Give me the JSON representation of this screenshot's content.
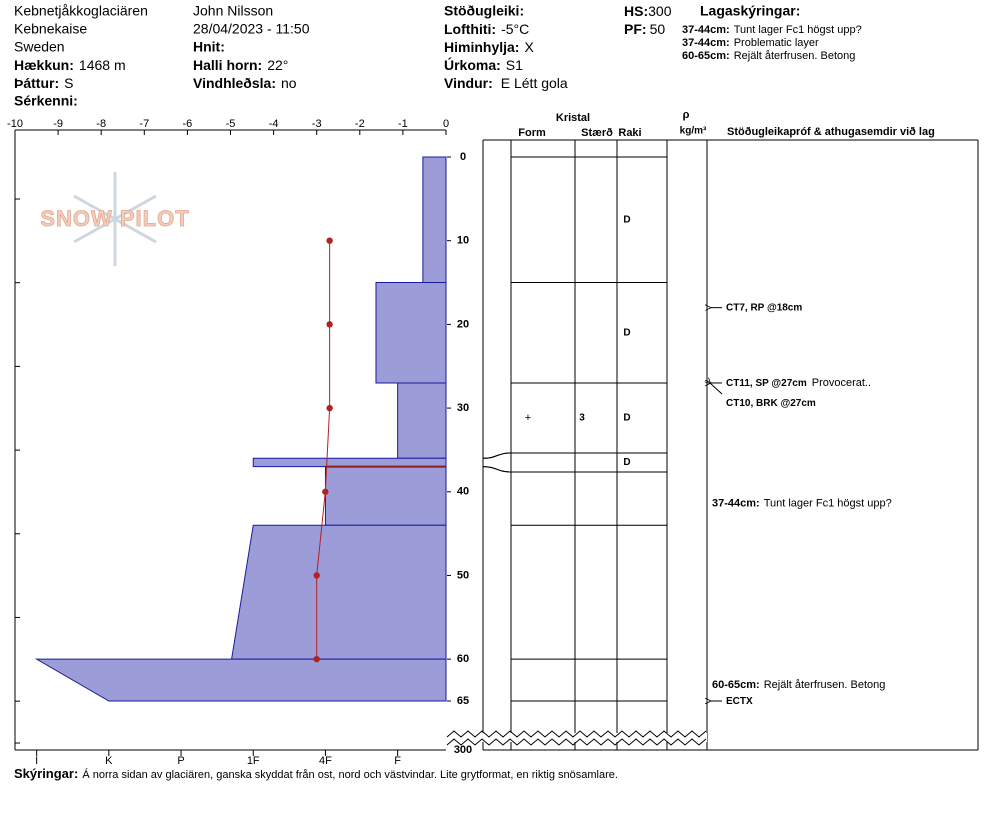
{
  "header": {
    "site": "Kebnetjåkkoglaciären",
    "area": "Kebnekaise",
    "country": "Sweden",
    "elevation": {
      "label": "Hækkun:",
      "value": "1468 m"
    },
    "aspect": {
      "label": "Þáttur:",
      "value": "S"
    },
    "features": {
      "label": "Sérkenni:"
    },
    "observer": "John Nilsson",
    "datetime": "28/04/2023 - 11:50",
    "coords": {
      "label": "Hnit:"
    },
    "slope": {
      "label": "Halli horn:",
      "value": "22°"
    },
    "wind_loading": {
      "label": "Vindhleðsla:",
      "value": "no"
    },
    "stability": {
      "label": "Stöðugleiki:"
    },
    "air_temp": {
      "label": "Lofthiti:",
      "value": "-5°C"
    },
    "sky": {
      "label": "Himinhylja:",
      "value": "X"
    },
    "precip": {
      "label": "Úrkoma:",
      "value": "S1"
    },
    "wind": {
      "label": "Vindur:",
      "value": "E Létt gola"
    },
    "hs": {
      "label": "HS:",
      "value": 300
    },
    "pf": {
      "label": "PF:",
      "value": 50
    },
    "layer_notes_title": "Lagaskýringar:",
    "layer_notes": [
      {
        "label": "37-44cm:",
        "text": "Tunt lager Fc1 högst upp?"
      },
      {
        "label": "37-44cm:",
        "text": "Problematic layer"
      },
      {
        "label": "60-65cm:",
        "text": "Rejält återfrusen. Betong"
      }
    ]
  },
  "logo": "SNOW PILOT",
  "columns": {
    "crystal": "Kristal",
    "form": "Form",
    "size": "Stærð",
    "moisture": "Raki",
    "density_symbol": "ρ",
    "density_unit": "kg/m³",
    "tests": "Stöðugleikapróf & athugasemdir við lag"
  },
  "profile": {
    "temp_lim": [
      -10,
      0
    ],
    "temp_ticks": [
      -10,
      -9,
      -8,
      -7,
      -6,
      -5,
      -4,
      -3,
      -2,
      -1,
      0
    ],
    "depth_lim": [
      0,
      65
    ],
    "depth_ticks": [
      0,
      10,
      20,
      30,
      40,
      50,
      60,
      65
    ],
    "depth_break_tick": 300,
    "hardness_lim": [
      6.3,
      0.33
    ],
    "hardness_ticks": [
      {
        "value": 6,
        "label": "I"
      },
      {
        "value": 5,
        "label": "K"
      },
      {
        "value": 4,
        "label": "P"
      },
      {
        "value": 3,
        "label": "1F"
      },
      {
        "value": 2,
        "label": "4F"
      },
      {
        "value": 1,
        "label": "F"
      }
    ],
    "hardness_color": "#9c9cd8",
    "temperature": {
      "color": "#b22222",
      "depth": [
        10,
        20,
        30,
        40,
        50,
        60
      ],
      "values": [
        -2.7,
        -2.7,
        -2.7,
        -2.8,
        -3.0,
        -3.0
      ]
    },
    "critical_depth": 37,
    "layers": [
      {
        "top": 0,
        "bottom": 15,
        "hardness_top": 0.65,
        "hardness_bottom": 0.65,
        "moisture": "D"
      },
      {
        "top": 15,
        "bottom": 27,
        "hardness_top": 1.3,
        "hardness_bottom": 1.3,
        "moisture": "D"
      },
      {
        "top": 27,
        "bottom": 36,
        "hardness_top": 1.0,
        "hardness_bottom": 1.0,
        "form": "+",
        "size": 3,
        "moisture": "D"
      },
      {
        "top": 36,
        "bottom": 37,
        "hardness_top": 3,
        "hardness_bottom": 3,
        "moisture": "D"
      },
      {
        "top": 37,
        "bottom": 44,
        "hardness_top": 2,
        "hardness_bottom": 2,
        "comment": {
          "label": "37-44cm:",
          "text": "Tunt lager Fc1 högst upp?"
        }
      },
      {
        "top": 44,
        "bottom": 60,
        "hardness_top": 3,
        "hardness_bottom": 3.3
      },
      {
        "top": 60,
        "bottom": 65,
        "hardness_top": 6,
        "hardness_bottom": 5,
        "comment": {
          "label": "60-65cm:",
          "text": "Rejält återfrusen. Betong"
        }
      }
    ],
    "tests": [
      {
        "text": "CT7, RP @18cm",
        "depth": 18
      },
      {
        "text": "CT11, SP @27cm",
        "note": "Provocerat..",
        "depth": 27
      },
      {
        "text": "CT10, BRK @27cm",
        "depth": 27
      },
      {
        "text": "ECTX",
        "depth": 65
      }
    ]
  },
  "footer": {
    "label": "Skýringar:",
    "text": "Á norra sidan av glaciären, ganska skyddat från ost, nord och västvindar. Lite grytformat, en riktig snösamlare."
  }
}
